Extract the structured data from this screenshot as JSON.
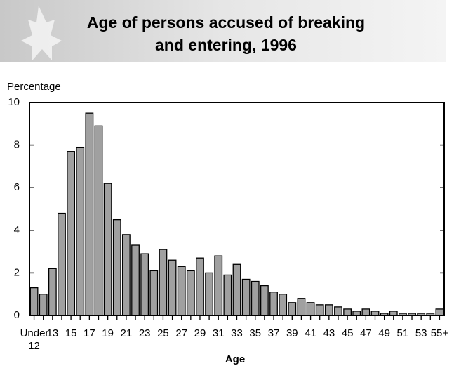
{
  "chart_data": {
    "type": "bar",
    "title": [
      "Age of persons accused of breaking",
      "and entering, 1996"
    ],
    "y_axis_label": "Percentage",
    "x_axis_label": "Age",
    "categories": [
      "Under 12",
      null,
      "13",
      null,
      "15",
      null,
      "17",
      null,
      "19",
      null,
      "21",
      null,
      "23",
      null,
      "25",
      null,
      "27",
      null,
      "29",
      null,
      "31",
      null,
      "33",
      null,
      "35",
      null,
      "37",
      null,
      "39",
      null,
      "41",
      null,
      "43",
      null,
      "45",
      null,
      "47",
      null,
      "49",
      null,
      "51",
      null,
      "53",
      null,
      "55+"
    ],
    "values": [
      1.3,
      1.0,
      2.2,
      4.8,
      7.7,
      7.9,
      9.5,
      8.9,
      6.2,
      4.5,
      3.8,
      3.3,
      2.9,
      2.1,
      3.1,
      2.6,
      2.3,
      2.1,
      2.7,
      2.0,
      2.8,
      1.9,
      2.4,
      1.7,
      1.6,
      1.4,
      1.1,
      1.0,
      0.6,
      0.8,
      0.6,
      0.5,
      0.5,
      0.4,
      0.3,
      0.2,
      0.3,
      0.2,
      0.1,
      0.2,
      0.1,
      0.1,
      0.1,
      0.1,
      0.3
    ],
    "color": "#a0a0a0",
    "ylim": [
      0,
      10
    ],
    "yticks": [
      0,
      2,
      4,
      6,
      8,
      10
    ]
  }
}
